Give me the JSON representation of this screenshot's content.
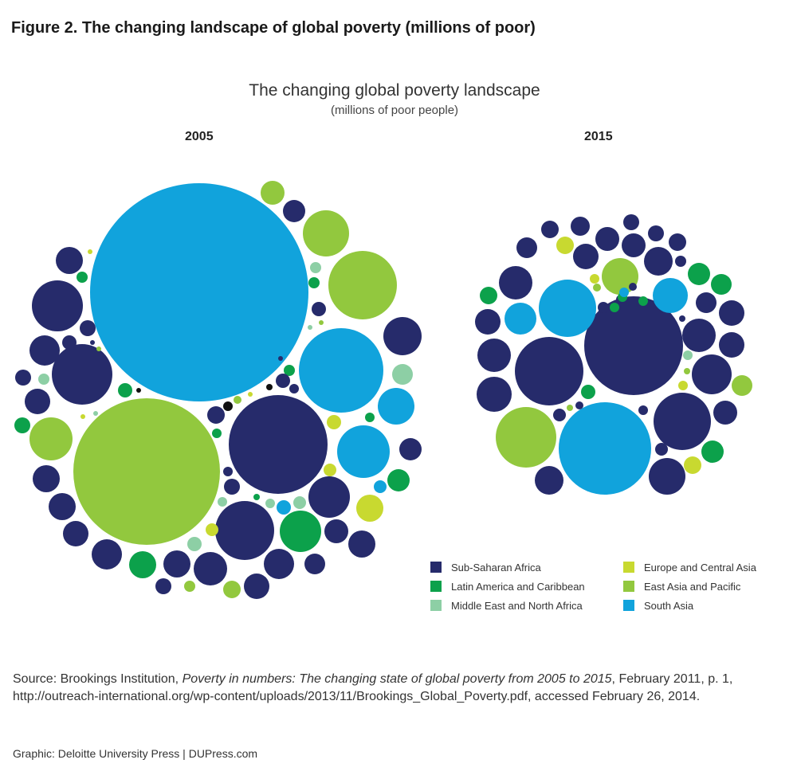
{
  "figure_title": "Figure 2. The changing landscape of global poverty (millions of poor)",
  "chart_data": {
    "type": "bubble",
    "title": "The changing global poverty landscape",
    "subtitle": "(millions of poor people)",
    "panels": [
      {
        "label": "2005"
      },
      {
        "label": "2015"
      }
    ],
    "legend": [
      {
        "name": "Sub-Saharan Africa",
        "color": "#262b6b"
      },
      {
        "name": "Latin America and Caribbean",
        "color": "#0ca14b"
      },
      {
        "name": "Middle East and North Africa",
        "color": "#8dcfa5"
      },
      {
        "name": "Europe and Central Asia",
        "color": "#c8d930"
      },
      {
        "name": "East Asia and Pacific",
        "color": "#92c83e"
      },
      {
        "name": "South Asia",
        "color": "#11a3dc"
      }
    ]
  },
  "source": {
    "prefix": "Source: Brookings Institution, ",
    "title": "Poverty in numbers: The changing state of global poverty from 2005 to 2015",
    "suffix": ", February 2011, p. 1, http://outreach-international.org/wp-content/uploads/2013/11/Brookings_Global_Poverty.pdf, accessed February 26, 2014."
  },
  "credit": "Graphic: Deloitte University Press  |  DUPress.com"
}
